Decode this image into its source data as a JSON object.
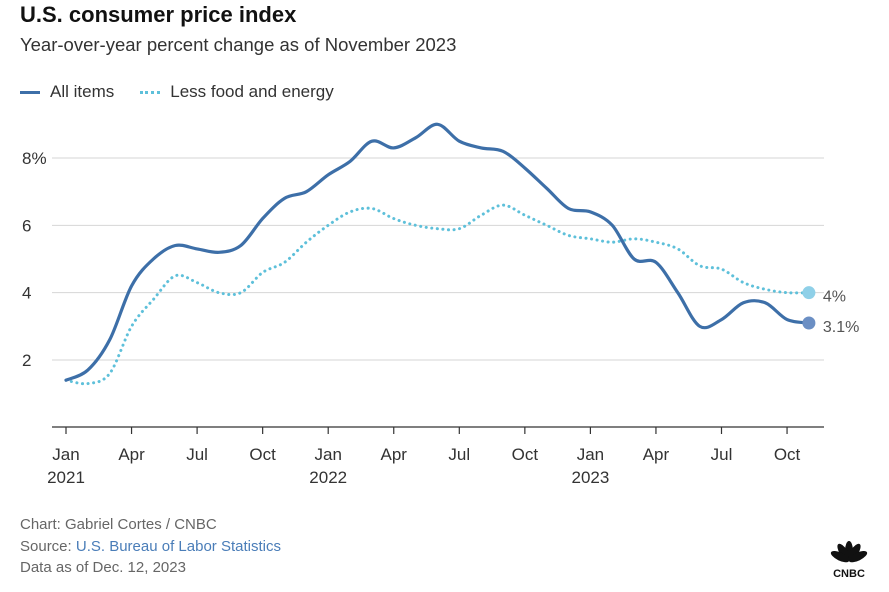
{
  "header": {
    "title": "U.S. consumer price index",
    "subtitle": "Year-over-year percent change as of November 2023"
  },
  "legend": [
    {
      "label": "All items",
      "style": "solid",
      "color": "#3d6fa8"
    },
    {
      "label": "Less food and energy",
      "style": "dotted",
      "color": "#5ec0da"
    }
  ],
  "footer": {
    "credit": "Chart: Gabriel Cortes / CNBC",
    "source_prefix": "Source: ",
    "source_link": "U.S. Bureau of Labor Statistics",
    "date_note": "Data as of Dec. 12, 2023"
  },
  "logo": {
    "text": "CNBC",
    "icon": "cnbc-peacock-icon"
  },
  "chart_data": {
    "type": "line",
    "title": "U.S. consumer price index",
    "subtitle": "Year-over-year percent change as of November 2023",
    "x": [
      "2021-01",
      "2021-02",
      "2021-03",
      "2021-04",
      "2021-05",
      "2021-06",
      "2021-07",
      "2021-08",
      "2021-09",
      "2021-10",
      "2021-11",
      "2021-12",
      "2022-01",
      "2022-02",
      "2022-03",
      "2022-04",
      "2022-05",
      "2022-06",
      "2022-07",
      "2022-08",
      "2022-09",
      "2022-10",
      "2022-11",
      "2022-12",
      "2023-01",
      "2023-02",
      "2023-03",
      "2023-04",
      "2023-05",
      "2023-06",
      "2023-07",
      "2023-08",
      "2023-09",
      "2023-10",
      "2023-11"
    ],
    "series": [
      {
        "name": "All items",
        "color": "#3d6fa8",
        "style": "solid",
        "values": [
          1.4,
          1.7,
          2.6,
          4.2,
          5.0,
          5.4,
          5.3,
          5.2,
          5.4,
          6.2,
          6.8,
          7.0,
          7.5,
          7.9,
          8.5,
          8.3,
          8.6,
          9.0,
          8.5,
          8.3,
          8.2,
          7.7,
          7.1,
          6.5,
          6.4,
          6.0,
          5.0,
          4.9,
          4.0,
          3.0,
          3.2,
          3.7,
          3.7,
          3.2,
          3.1
        ],
        "end_label": "3.1%"
      },
      {
        "name": "Less food and energy",
        "color": "#5ec0da",
        "style": "dotted",
        "values": [
          1.4,
          1.3,
          1.6,
          3.0,
          3.8,
          4.5,
          4.3,
          4.0,
          4.0,
          4.6,
          4.9,
          5.5,
          6.0,
          6.4,
          6.5,
          6.2,
          6.0,
          5.9,
          5.9,
          6.3,
          6.6,
          6.3,
          6.0,
          5.7,
          5.6,
          5.5,
          5.6,
          5.5,
          5.3,
          4.8,
          4.7,
          4.3,
          4.1,
          4.0,
          4.0
        ],
        "end_label": "4%"
      }
    ],
    "yticks": [
      {
        "value": 2,
        "label": "2"
      },
      {
        "value": 4,
        "label": "4"
      },
      {
        "value": 6,
        "label": "6"
      },
      {
        "value": 8,
        "label": "8%"
      }
    ],
    "xticks": [
      {
        "index": 0,
        "label": "Jan",
        "year": "2021"
      },
      {
        "index": 3,
        "label": "Apr",
        "year": ""
      },
      {
        "index": 6,
        "label": "Jul",
        "year": ""
      },
      {
        "index": 9,
        "label": "Oct",
        "year": ""
      },
      {
        "index": 12,
        "label": "Jan",
        "year": "2022"
      },
      {
        "index": 15,
        "label": "Apr",
        "year": ""
      },
      {
        "index": 18,
        "label": "Jul",
        "year": ""
      },
      {
        "index": 21,
        "label": "Oct",
        "year": ""
      },
      {
        "index": 24,
        "label": "Jan",
        "year": "2023"
      },
      {
        "index": 27,
        "label": "Apr",
        "year": ""
      },
      {
        "index": 30,
        "label": "Jul",
        "year": ""
      },
      {
        "index": 33,
        "label": "Oct",
        "year": ""
      }
    ],
    "ylim": [
      0,
      9.5
    ],
    "grid": true,
    "legend_position": "top-left"
  }
}
